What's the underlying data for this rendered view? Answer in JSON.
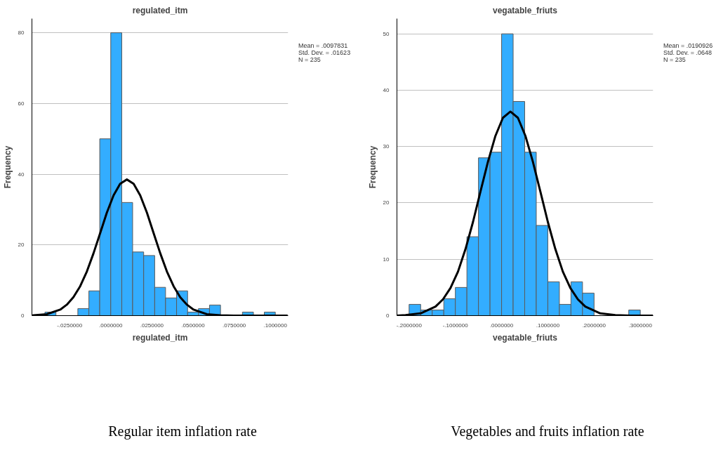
{
  "chart_data": [
    {
      "type": "histogram",
      "title": "regulated_itm",
      "xlabel": "regulated_itm",
      "ylabel": "Frequency",
      "color": "#33adff",
      "bins": [
        -0.04,
        -0.0333,
        -0.0267,
        -0.02,
        -0.0133,
        -0.0067,
        0,
        0.0067,
        0.0133,
        0.02,
        0.0267,
        0.0333,
        0.04,
        0.0467,
        0.0533,
        0.06,
        0.0667,
        0.0733,
        0.08,
        0.0867,
        0.0933,
        0.1
      ],
      "values": [
        1,
        0,
        0,
        2,
        7,
        50,
        80,
        32,
        18,
        17,
        8,
        5,
        7,
        1,
        2,
        3,
        0,
        0,
        1,
        0,
        1
      ],
      "series": [
        {
          "type": "line",
          "color": "#000000",
          "x": [
            -0.0479,
            -0.0469,
            -0.0389,
            -0.0307,
            -0.0267,
            -0.0227,
            -0.0186,
            -0.0145,
            -0.0105,
            -0.0064,
            -0.0024,
            0.0017,
            0.0057,
            0.0098,
            0.0139,
            0.0179,
            0.022,
            0.026,
            0.0301,
            0.0341,
            0.0382,
            0.0422,
            0.0463,
            0.0503,
            0.0584,
            0.0665,
            0.0746,
            0.0908,
            0.1075
          ],
          "values": [
            0,
            0.1,
            0.4,
            1.7,
            3.1,
            5.2,
            8.3,
            12.5,
            17.6,
            23.4,
            29.1,
            34.0,
            37.3,
            38.5,
            37.3,
            34.0,
            29.1,
            23.4,
            17.6,
            12.5,
            8.3,
            5.2,
            3.1,
            1.7,
            0.4,
            0.1,
            0,
            0,
            0
          ]
        }
      ],
      "xlim": [
        -0.0479,
        0.1078
      ],
      "ylim": [
        0,
        84
      ],
      "xticks": [
        {
          "value": -0.025,
          "label": "-.0250000"
        },
        {
          "value": 0,
          "label": ".0000000"
        },
        {
          "value": 0.025,
          "label": ".0250000"
        },
        {
          "value": 0.05,
          "label": ".0500000"
        },
        {
          "value": 0.075,
          "label": ".0750000"
        },
        {
          "value": 0.1,
          "label": ".1000000"
        }
      ],
      "yticks": [
        0,
        20,
        40,
        60,
        80
      ],
      "grid": "y",
      "annotations": [
        "Mean = .0097831",
        "Std. Dev. = .01623",
        "N = 235",
        "Regular item inflation rate"
      ]
    },
    {
      "type": "histogram",
      "title": "vegatable_friuts",
      "xlabel": "vegatable_friuts",
      "ylabel": "Frequency",
      "color": "#33adff",
      "bins": [
        -0.2,
        -0.175,
        -0.15,
        -0.125,
        -0.1,
        -0.075,
        -0.05,
        -0.025,
        0,
        0.025,
        0.05,
        0.075,
        0.1,
        0.125,
        0.15,
        0.175,
        0.2,
        0.225,
        0.25,
        0.275,
        0.3
      ],
      "values": [
        2,
        1,
        1,
        3,
        5,
        14,
        28,
        29,
        50,
        38,
        29,
        16,
        6,
        2,
        6,
        4,
        0,
        0,
        0,
        1
      ],
      "series": [
        {
          "type": "line",
          "color": "#000000",
          "x": [
            -0.2263,
            -0.2077,
            -0.1753,
            -0.1429,
            -0.1267,
            -0.1105,
            -0.0943,
            -0.0781,
            -0.0619,
            -0.0457,
            -0.0295,
            -0.0133,
            0.0029,
            0.0191,
            0.0353,
            0.0515,
            0.0677,
            0.0839,
            0.1001,
            0.1163,
            0.1325,
            0.1487,
            0.1649,
            0.1811,
            0.2135,
            0.2459,
            0.2783,
            0.3275
          ],
          "values": [
            0,
            0.1,
            0.4,
            1.6,
            2.9,
            4.9,
            7.8,
            11.8,
            16.6,
            22.0,
            27.3,
            31.9,
            35.1,
            36.2,
            35.1,
            31.9,
            27.3,
            22.0,
            16.6,
            11.8,
            7.8,
            4.9,
            2.9,
            1.6,
            0.4,
            0.1,
            0,
            0
          ]
        }
      ],
      "xlim": [
        -0.2263,
        0.3278
      ],
      "ylim": [
        0,
        52.7
      ],
      "xticks": [
        {
          "value": -0.2,
          "label": "-.2000000"
        },
        {
          "value": -0.1,
          "label": "-.1000000"
        },
        {
          "value": 0,
          "label": ".0000000"
        },
        {
          "value": 0.1,
          "label": ".1000000"
        },
        {
          "value": 0.2,
          "label": ".2000000"
        },
        {
          "value": 0.3,
          "label": ".3000000"
        }
      ],
      "yticks": [
        0,
        10,
        20,
        30,
        40,
        50
      ],
      "grid": "y",
      "annotations": [
        "Mean = .0190926",
        "Std. Dev. = .0648",
        "N = 235",
        "Vegetables and fruits inflation rate"
      ]
    }
  ]
}
